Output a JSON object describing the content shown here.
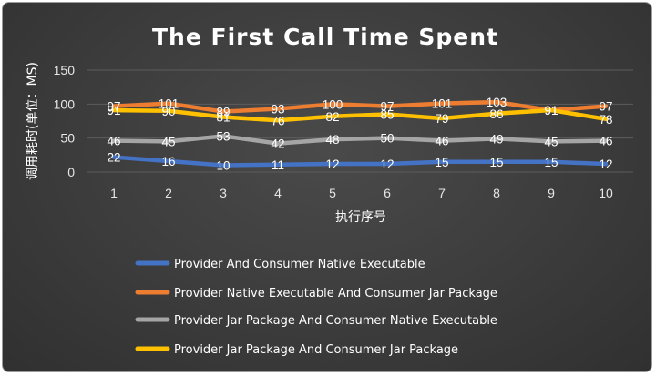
{
  "chart_data": {
    "type": "line",
    "title": "The First Call Time Spent",
    "xlabel": "执行序号",
    "ylabel": "调用耗时(单位：MS)",
    "categories": [
      "1",
      "2",
      "3",
      "4",
      "5",
      "6",
      "7",
      "8",
      "9",
      "10"
    ],
    "ylim": [
      0,
      150
    ],
    "yticks": [
      "0",
      "50",
      "100",
      "150"
    ],
    "grid": true,
    "legend_position": "bottom",
    "series": [
      {
        "name": "Provider And Consumer  Native Executable",
        "color": "#4472c4",
        "values": [
          22,
          16,
          10,
          11,
          12,
          12,
          15,
          15,
          15,
          12
        ]
      },
      {
        "name": "Provider Native Executable And Consumer Jar Package",
        "color": "#ed7d31",
        "values": [
          97,
          101,
          89,
          93,
          100,
          97,
          101,
          103,
          91,
          97
        ]
      },
      {
        "name": "Provider Jar Package  And Consumer Native Executable",
        "color": "#a5a5a5",
        "values": [
          46,
          45,
          53,
          42,
          48,
          50,
          46,
          49,
          45,
          46
        ]
      },
      {
        "name": "Provider Jar Package  And Consumer Jar Package",
        "color": "#ffc000",
        "values": [
          91,
          90,
          81,
          76,
          82,
          85,
          79,
          86,
          91,
          78
        ]
      }
    ]
  }
}
